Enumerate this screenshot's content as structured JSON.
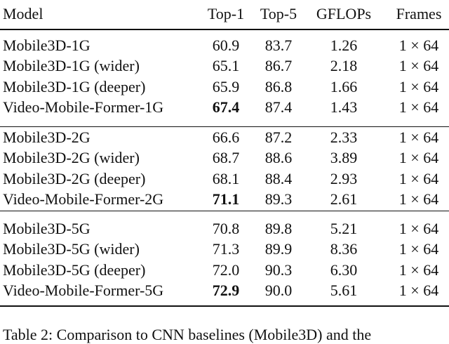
{
  "table": {
    "columns": [
      "Model",
      "Top-1",
      "Top-5",
      "GFLOPs",
      "Frames"
    ],
    "groups": [
      [
        [
          "Mobile3D-1G",
          "60.9",
          "83.7",
          "1.26",
          "1 × 64"
        ],
        [
          "Mobile3D-1G (wider)",
          "65.1",
          "86.7",
          "2.18",
          "1 × 64"
        ],
        [
          "Mobile3D-1G (deeper)",
          "65.9",
          "86.8",
          "1.66",
          "1 × 64"
        ],
        [
          "Video-Mobile-Former-1G",
          "67.4",
          "87.4",
          "1.43",
          "1 × 64"
        ]
      ],
      [
        [
          "Mobile3D-2G",
          "66.6",
          "87.2",
          "2.33",
          "1 × 64"
        ],
        [
          "Mobile3D-2G (wider)",
          "68.7",
          "88.6",
          "3.89",
          "1 × 64"
        ],
        [
          "Mobile3D-2G (deeper)",
          "68.1",
          "88.4",
          "2.93",
          "1 × 64"
        ],
        [
          "Video-Mobile-Former-2G",
          "71.1",
          "89.3",
          "2.61",
          "1 × 64"
        ]
      ],
      [
        [
          "Mobile3D-5G",
          "70.8",
          "89.8",
          "5.21",
          "1 × 64"
        ],
        [
          "Mobile3D-5G (wider)",
          "71.3",
          "89.9",
          "8.36",
          "1 × 64"
        ],
        [
          "Mobile3D-5G (deeper)",
          "72.0",
          "90.3",
          "6.30",
          "1 × 64"
        ],
        [
          "Video-Mobile-Former-5G",
          "72.9",
          "90.0",
          "5.61",
          "1 × 64"
        ]
      ]
    ]
  },
  "caption": "Table 2: Comparison to CNN baselines (Mobile3D) and the"
}
